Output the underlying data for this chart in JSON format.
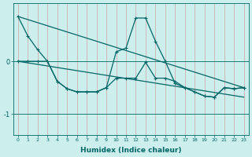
{
  "xlabel": "Humidex (Indice chaleur)",
  "bg_color": "#cceeed",
  "line_color": "#006666",
  "grid_color_v": "#d4a0a0",
  "ylim": [
    -1.4,
    1.1
  ],
  "xlim": [
    -0.5,
    23.5
  ],
  "series_zigzag1": {
    "x": [
      0,
      1,
      2,
      3,
      4,
      5,
      6,
      7,
      8,
      9,
      10,
      11,
      12,
      13,
      14,
      15,
      16,
      17,
      18,
      19,
      20,
      21,
      22,
      23
    ],
    "y": [
      0.85,
      0.48,
      0.22,
      0.0,
      -0.38,
      -0.52,
      -0.58,
      -0.58,
      -0.58,
      -0.5,
      0.18,
      0.25,
      0.82,
      0.82,
      0.38,
      -0.0,
      -0.42,
      -0.5,
      -0.58,
      -0.66,
      -0.68,
      -0.5,
      -0.52,
      -0.5
    ]
  },
  "series_zigzag2": {
    "x": [
      0,
      1,
      2,
      3,
      4,
      5,
      6,
      7,
      8,
      9,
      10,
      11,
      12,
      13,
      14,
      15,
      16,
      17,
      18,
      19,
      20,
      21,
      22,
      23
    ],
    "y": [
      0.0,
      0.0,
      0.0,
      0.0,
      -0.38,
      -0.52,
      -0.58,
      -0.58,
      -0.58,
      -0.5,
      -0.32,
      -0.32,
      -0.32,
      -0.02,
      -0.32,
      -0.32,
      -0.38,
      -0.5,
      -0.58,
      -0.66,
      -0.68,
      -0.5,
      -0.52,
      -0.5
    ]
  },
  "series_diag1": {
    "x": [
      0,
      23
    ],
    "y": [
      0.85,
      -0.5
    ]
  },
  "series_diag2": {
    "x": [
      0,
      23
    ],
    "y": [
      0.0,
      -0.68
    ]
  },
  "yticks": [
    0,
    -1
  ],
  "xticks": [
    0,
    1,
    2,
    3,
    4,
    5,
    6,
    7,
    8,
    9,
    10,
    11,
    12,
    13,
    14,
    15,
    16,
    17,
    18,
    19,
    20,
    21,
    22,
    23
  ]
}
